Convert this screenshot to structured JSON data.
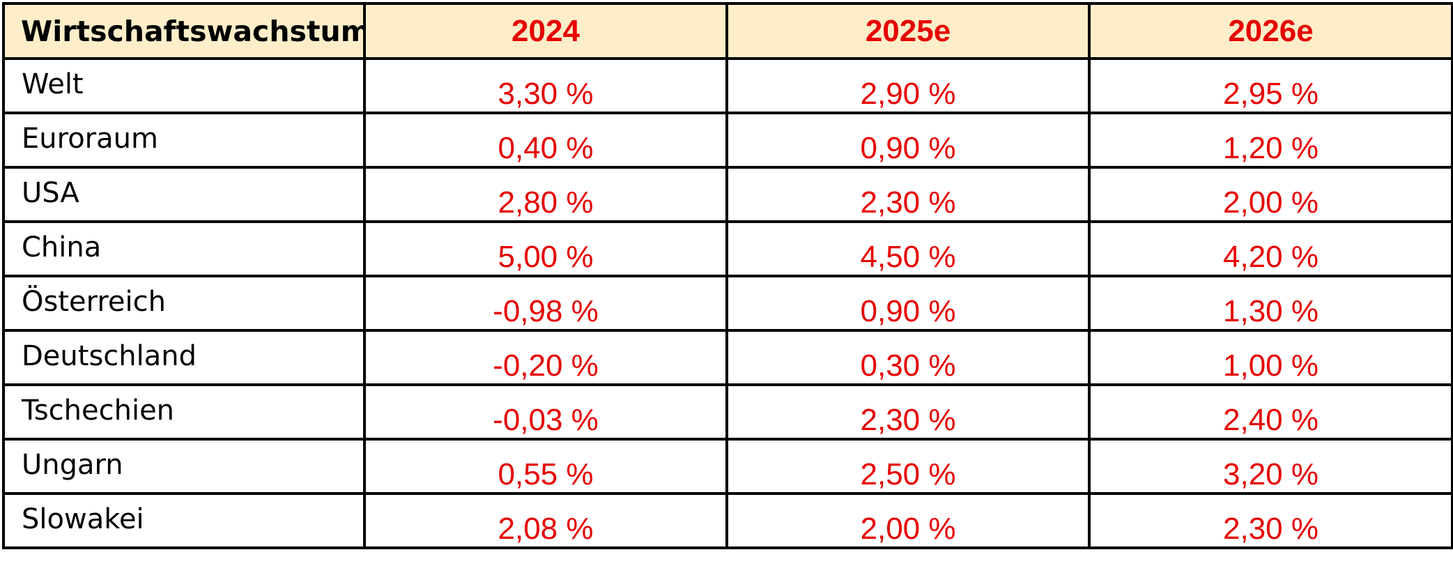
{
  "table": {
    "header": [
      "Wirtschaftswachstum",
      "2024",
      "2025e",
      "2026e"
    ],
    "rows": [
      {
        "label": "Welt",
        "values": [
          "3,30 %",
          "2,90 %",
          "2,95 %"
        ]
      },
      {
        "label": "Euroraum",
        "values": [
          "0,40 %",
          "0,90 %",
          "1,20 %"
        ]
      },
      {
        "label": "USA",
        "values": [
          "2,80 %",
          "2,30 %",
          "2,00 %"
        ]
      },
      {
        "label": "China",
        "values": [
          "5,00 %",
          "4,50 %",
          "4,20 %"
        ]
      },
      {
        "label": "Österreich",
        "values": [
          "-0,98 %",
          "0,90 %",
          "1,30 %"
        ]
      },
      {
        "label": "Deutschland",
        "values": [
          "-0,20 %",
          "0,30 %",
          "1,00 %"
        ]
      },
      {
        "label": "Tschechien",
        "values": [
          "-0,03 %",
          "2,30 %",
          "2,40 %"
        ]
      },
      {
        "label": "Ungarn",
        "values": [
          "0,55 %",
          "2,50 %",
          "3,20 %"
        ]
      },
      {
        "label": "Slowakei",
        "values": [
          "2,08 %",
          "2,00 %",
          "2,30 %"
        ]
      }
    ]
  },
  "colors": {
    "header_background": "#fdeec9",
    "value_text": "#e60000",
    "label_text": "#000000",
    "border": "#000000"
  }
}
